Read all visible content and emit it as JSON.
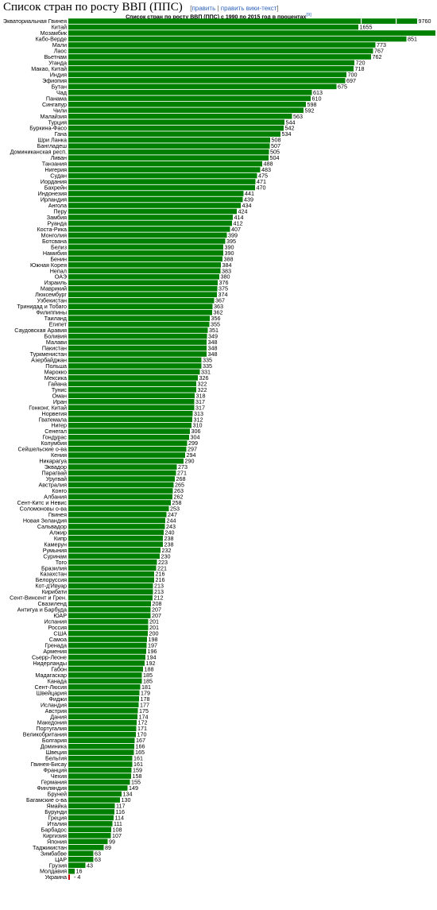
{
  "page": {
    "title": "Список стран по росту ВВП (ППС)",
    "edit_open": "[",
    "edit_link": "править",
    "edit_sep": "|",
    "edit_wiki_link": "править вики-текст",
    "edit_close": "]"
  },
  "chart_data": {
    "type": "bar",
    "orientation": "horizontal",
    "title": "Список стран по росту ВВП (ППС) с 1990 по 2015 год в процентах",
    "title_footnote": "[9]",
    "bar_color": "#008000",
    "negative_color": "#cc0000",
    "value_scale_max": 1000,
    "broken_axis_values": [
      9760,
      1655
    ],
    "grid": false,
    "legend": "none",
    "categories": [
      "Экваториальная Гвинея",
      "Китай",
      "Мозамбик",
      "Кабо-Верде",
      "Мали",
      "Лаос",
      "Вьетнам",
      "Уганда",
      "Макао, Китай",
      "Индия",
      "Эфиопия",
      "Бутан",
      "Чад",
      "Панама",
      "Сингапур",
      "Чили",
      "Малайзия",
      "Турция",
      "Буркина-Фасо",
      "Гана",
      "Шри Ланка",
      "Бангладеш",
      "Доминиканская респ.",
      "Ливан",
      "Танзания",
      "Нигерия",
      "Судан",
      "Иордания",
      "Бахрейн",
      "Индонезия",
      "Ирландия",
      "Ангола",
      "Перу",
      "Замбия",
      "Руанда",
      "Коста-Рика",
      "Монголия",
      "Ботсвана",
      "Белиз",
      "Намибия",
      "Бенин",
      "Южная Корея",
      "Непал",
      "ОАЭ",
      "Израиль",
      "Маврикий",
      "Люксембург",
      "Узбекистан",
      "Тринидад и Тобаго",
      "Филиппины",
      "Таиланд",
      "Египет",
      "Саудовская Аравия",
      "Боливия",
      "Малави",
      "Пакистан",
      "Туркменистан",
      "Азербайджан",
      "Польша",
      "Марокко",
      "Мексика",
      "Гайана",
      "Тунис",
      "Оман",
      "Иран",
      "Гонконг, Китай",
      "Норвегия",
      "Гватемала",
      "Нигер",
      "Сенегал",
      "Гондурас",
      "Колумбия",
      "Сейшельские о-ва",
      "Кения",
      "Никарагуа",
      "Эквадор",
      "Парагвай",
      "Уругвай",
      "Австралия",
      "Конго",
      "Албания",
      "Сент-Китс и Невис",
      "Соломоновы о-ва",
      "Гвинея",
      "Новая Зеландия",
      "Сальвадор",
      "Алжир",
      "Кипр",
      "Камерун",
      "Румыния",
      "Суринам",
      "Того",
      "Бразилия",
      "Казахстан",
      "Белоруссия",
      "Кот-д'Ивуар",
      "Кирибати",
      "Сент-Винсент и Грен.",
      "Свазиленд",
      "Антигуа и Барбуда",
      "ЮАР",
      "Испания",
      "Россия",
      "США",
      "Самоа",
      "Гренада",
      "Армения",
      "Сьерр-Леоне",
      "Нидерланды",
      "Габон",
      "Мадагаскар",
      "Канада",
      "Сент-Люсия",
      "Швейцария",
      "Фиджи",
      "Исландия",
      "Австрия",
      "Дания",
      "Македония",
      "Португалия",
      "Великобритания",
      "Болгария",
      "Доминика",
      "Швеция",
      "Бельгия",
      "Гвинея-Бисау",
      "Франция",
      "Чехия",
      "Германия",
      "Финляндия",
      "Бруней",
      "Багамские о-ва",
      "Ямайка",
      "Бурунди",
      "Греция",
      "Италия",
      "Барбадос",
      "Киргизия",
      "Япония",
      "Таджикистан",
      "Зимбабве",
      "ЦАР",
      "Грузия",
      "Молдавия",
      "Украина"
    ],
    "values": [
      9760,
      1655,
      924,
      851,
      773,
      767,
      762,
      720,
      718,
      700,
      697,
      675,
      613,
      610,
      598,
      592,
      563,
      544,
      542,
      534,
      508,
      507,
      505,
      504,
      488,
      483,
      475,
      471,
      470,
      441,
      439,
      434,
      424,
      414,
      412,
      407,
      399,
      395,
      390,
      390,
      388,
      384,
      383,
      380,
      376,
      375,
      374,
      367,
      363,
      362,
      356,
      355,
      351,
      349,
      348,
      348,
      348,
      335,
      335,
      331,
      326,
      322,
      322,
      318,
      317,
      317,
      313,
      312,
      310,
      306,
      304,
      299,
      297,
      294,
      290,
      273,
      271,
      268,
      265,
      263,
      262,
      258,
      253,
      247,
      244,
      243,
      240,
      238,
      238,
      232,
      230,
      223,
      221,
      216,
      216,
      213,
      213,
      212,
      208,
      207,
      207,
      201,
      201,
      200,
      198,
      197,
      196,
      194,
      192,
      188,
      185,
      185,
      181,
      179,
      178,
      177,
      175,
      174,
      172,
      171,
      170,
      167,
      166,
      165,
      161,
      161,
      159,
      158,
      155,
      149,
      134,
      130,
      117,
      116,
      114,
      111,
      108,
      107,
      99,
      89,
      63,
      63,
      43,
      16,
      -4
    ]
  }
}
